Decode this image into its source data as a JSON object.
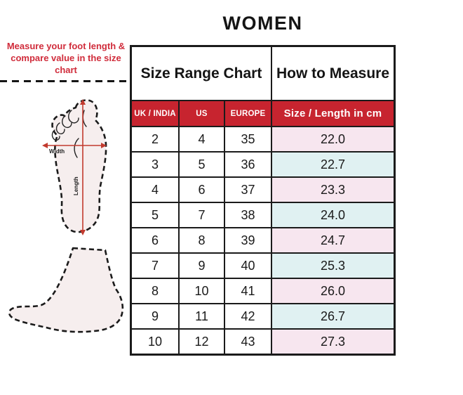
{
  "title": "WOMEN",
  "annotation": {
    "text": "Measure your foot length & compare value in the size chart"
  },
  "foot_diagram": {
    "width_label": "Width",
    "length_label": "Length"
  },
  "table": {
    "group_headers": [
      {
        "label": "Size Range Chart"
      },
      {
        "label": "How to Measure"
      }
    ],
    "columns": [
      "UK / INDIA",
      "US",
      "EUROPE",
      "Size / Length in cm"
    ],
    "rows": [
      [
        "2",
        "4",
        "35",
        "22.0"
      ],
      [
        "3",
        "5",
        "36",
        "22.7"
      ],
      [
        "4",
        "6",
        "37",
        "23.3"
      ],
      [
        "5",
        "7",
        "38",
        "24.0"
      ],
      [
        "6",
        "8",
        "39",
        "24.7"
      ],
      [
        "7",
        "9",
        "40",
        "25.3"
      ],
      [
        "8",
        "10",
        "41",
        "26.0"
      ],
      [
        "9",
        "11",
        "42",
        "26.7"
      ],
      [
        "10",
        "12",
        "43",
        "27.3"
      ]
    ]
  },
  "colors": {
    "header_red": "#C7242F",
    "annotation_red": "#D02C3B",
    "arrow_red": "#C23A2E",
    "row_pink": "#F7E6EF",
    "row_blue": "#E0F1F2",
    "foot_fill": "#F6EEEE",
    "border_black": "#1B1B1B"
  }
}
